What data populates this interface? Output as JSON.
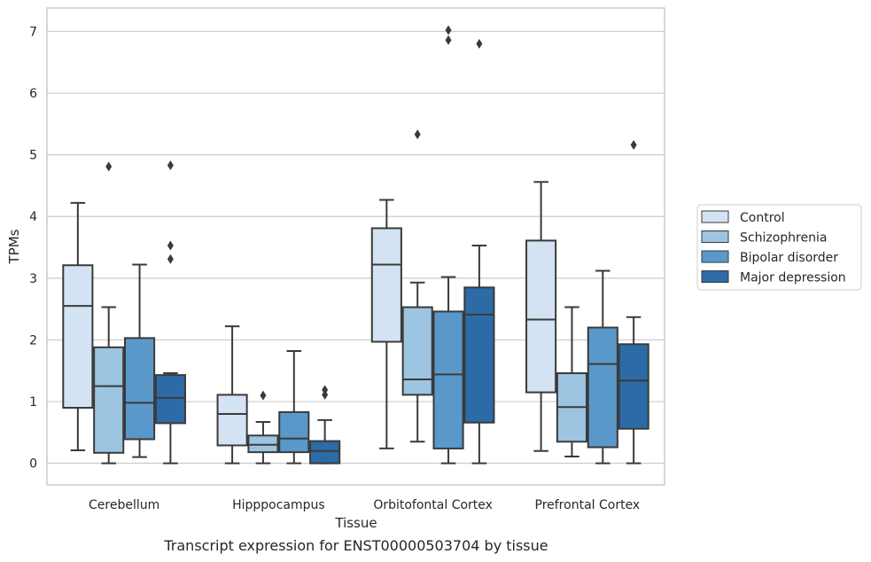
{
  "caption": "Transcript expression for ENST00000503704 by tissue",
  "chart_data": {
    "type": "boxplot",
    "xlabel": "Tissue",
    "ylabel": "TPMs",
    "ylim": [
      -0.35,
      7.38
    ],
    "yticks": [
      0,
      1,
      2,
      3,
      4,
      5,
      6,
      7
    ],
    "grid": "horizontal",
    "legend_position": "right",
    "categories": [
      "Cerebellum",
      "Hipppocampus",
      "Orbitofontal Cortex",
      "Prefrontal Cortex"
    ],
    "series": [
      {
        "name": "Control",
        "color": "#d4e3f3",
        "boxes": [
          {
            "whisker_low": 0.21,
            "q1": 0.9,
            "median": 2.55,
            "q3": 3.21,
            "whisker_high": 4.22,
            "outliers": []
          },
          {
            "whisker_low": 0.0,
            "q1": 0.29,
            "median": 0.8,
            "q3": 1.11,
            "whisker_high": 2.22,
            "outliers": []
          },
          {
            "whisker_low": 0.24,
            "q1": 1.97,
            "median": 3.22,
            "q3": 3.81,
            "whisker_high": 4.27,
            "outliers": []
          },
          {
            "whisker_low": 0.2,
            "q1": 1.15,
            "median": 2.33,
            "q3": 3.61,
            "whisker_high": 4.56,
            "outliers": []
          }
        ]
      },
      {
        "name": "Schizophrenia",
        "color": "#9dc4e0",
        "boxes": [
          {
            "whisker_low": 0.0,
            "q1": 0.17,
            "median": 1.25,
            "q3": 1.88,
            "whisker_high": 2.53,
            "outliers": [
              4.81
            ]
          },
          {
            "whisker_low": 0.0,
            "q1": 0.18,
            "median": 0.3,
            "q3": 0.45,
            "whisker_high": 0.67,
            "outliers": [
              1.1
            ]
          },
          {
            "whisker_low": 0.35,
            "q1": 1.11,
            "median": 1.36,
            "q3": 2.53,
            "whisker_high": 2.93,
            "outliers": [
              5.33
            ]
          },
          {
            "whisker_low": 0.11,
            "q1": 0.35,
            "median": 0.91,
            "q3": 1.46,
            "whisker_high": 2.53,
            "outliers": []
          }
        ]
      },
      {
        "name": "Bipolar disorder",
        "color": "#5a98c9",
        "boxes": [
          {
            "whisker_low": 0.1,
            "q1": 0.39,
            "median": 0.98,
            "q3": 2.03,
            "whisker_high": 3.22,
            "outliers": []
          },
          {
            "whisker_low": 0.0,
            "q1": 0.18,
            "median": 0.4,
            "q3": 0.83,
            "whisker_high": 1.82,
            "outliers": []
          },
          {
            "whisker_low": 0.0,
            "q1": 0.24,
            "median": 1.44,
            "q3": 2.46,
            "whisker_high": 3.02,
            "outliers": [
              6.86,
              7.02
            ]
          },
          {
            "whisker_low": 0.0,
            "q1": 0.26,
            "median": 1.61,
            "q3": 2.2,
            "whisker_high": 3.12,
            "outliers": []
          }
        ]
      },
      {
        "name": "Major depression",
        "color": "#2c6ba6",
        "boxes": [
          {
            "whisker_low": 0.0,
            "q1": 0.65,
            "median": 1.06,
            "q3": 1.43,
            "whisker_high": 1.46,
            "outliers": [
              3.31,
              3.53,
              4.83
            ]
          },
          {
            "whisker_low": 0.0,
            "q1": 0.0,
            "median": 0.2,
            "q3": 0.36,
            "whisker_high": 0.7,
            "outliers": [
              1.11,
              1.19
            ]
          },
          {
            "whisker_low": 0.0,
            "q1": 0.66,
            "median": 2.41,
            "q3": 2.85,
            "whisker_high": 3.53,
            "outliers": [
              6.8
            ]
          },
          {
            "whisker_low": 0.0,
            "q1": 0.56,
            "median": 1.34,
            "q3": 1.93,
            "whisker_high": 2.37,
            "outliers": [
              5.16
            ]
          }
        ]
      }
    ]
  }
}
